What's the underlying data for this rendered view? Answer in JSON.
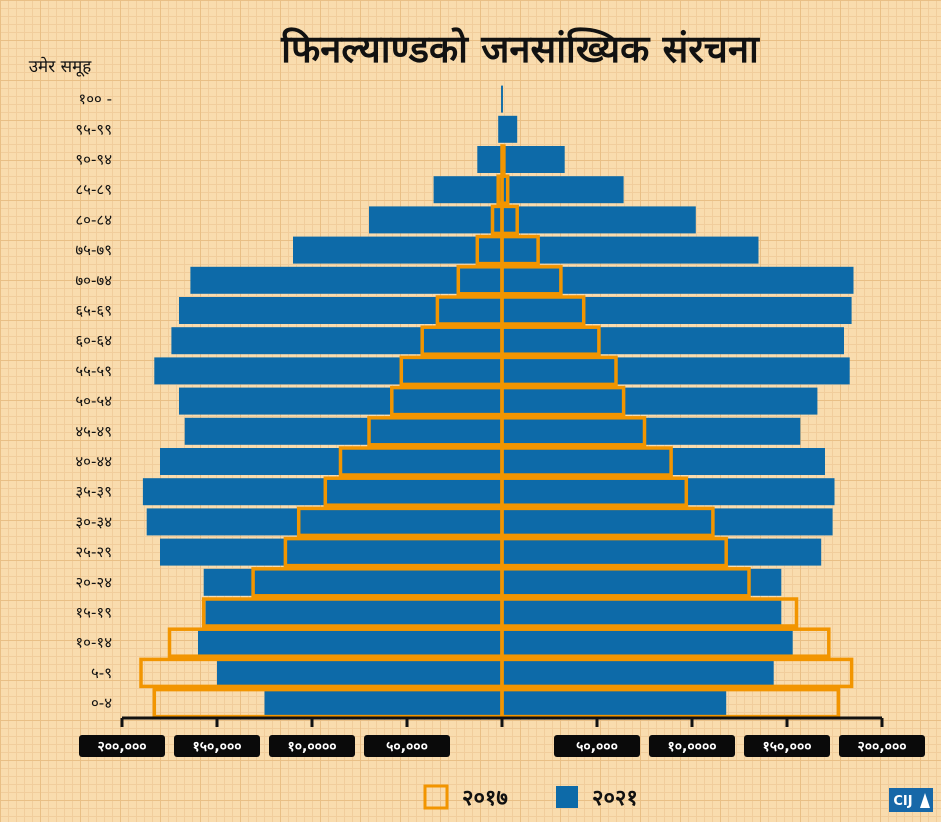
{
  "title": "फिनल्याण्डको जनसांख्यिक संरचना",
  "logo": "CIJ",
  "chart_data": {
    "type": "bar",
    "orientation": "horizontal",
    "layout": "population-pyramid",
    "y_axis_title": "उमेर समूह",
    "categories": [
      "१०० -",
      "९५-९९",
      "९०-९४",
      "८५-८९",
      "८०-८४",
      "७५-७९",
      "७०-७४",
      "६५-६९",
      "६०-६४",
      "५५-५९",
      "५०-५४",
      "४५-४९",
      "४०-४४",
      "३५-३९",
      "३०-३४",
      "२५-२९",
      "२०-२४",
      "१५-१९",
      "१०-१४",
      "५-९",
      "०-४"
    ],
    "series": [
      {
        "name": "२०२१",
        "style": "filled",
        "color": "#0d6aa8",
        "left_values": [
          500,
          2000,
          13000,
          36000,
          70000,
          110000,
          164000,
          170000,
          174000,
          183000,
          170000,
          167000,
          180000,
          189000,
          187000,
          180000,
          157000,
          156000,
          160000,
          150000,
          125000
        ],
        "right_values": [
          500,
          8000,
          33000,
          64000,
          102000,
          135000,
          185000,
          184000,
          180000,
          183000,
          166000,
          157000,
          170000,
          175000,
          174000,
          168000,
          147000,
          147000,
          153000,
          143000,
          118000
        ]
      },
      {
        "name": "२०१७",
        "style": "outline",
        "color": "#f29500",
        "left_values": [
          0,
          0,
          0,
          2000,
          5000,
          13000,
          23000,
          34000,
          42000,
          53000,
          58000,
          70000,
          85000,
          93000,
          107000,
          114000,
          131000,
          157000,
          175000,
          190000,
          183000
        ],
        "right_values": [
          0,
          0,
          1000,
          3000,
          8000,
          19000,
          31000,
          43000,
          51000,
          60000,
          64000,
          75000,
          89000,
          97000,
          111000,
          118000,
          130000,
          155000,
          172000,
          184000,
          177000
        ]
      }
    ],
    "x_ticks": [
      -200000,
      -150000,
      -100000,
      -50000,
      0,
      50000,
      100000,
      150000,
      200000
    ],
    "x_tick_labels": [
      "२००,०००",
      "१५०,०००",
      "१०,००००",
      "५०,०००",
      "",
      "५०,०००",
      "१०,००००",
      "१५०,०००",
      "२००,०००"
    ],
    "xlim": [
      -200000,
      200000
    ],
    "legend_position": "bottom-center",
    "grid": true
  }
}
